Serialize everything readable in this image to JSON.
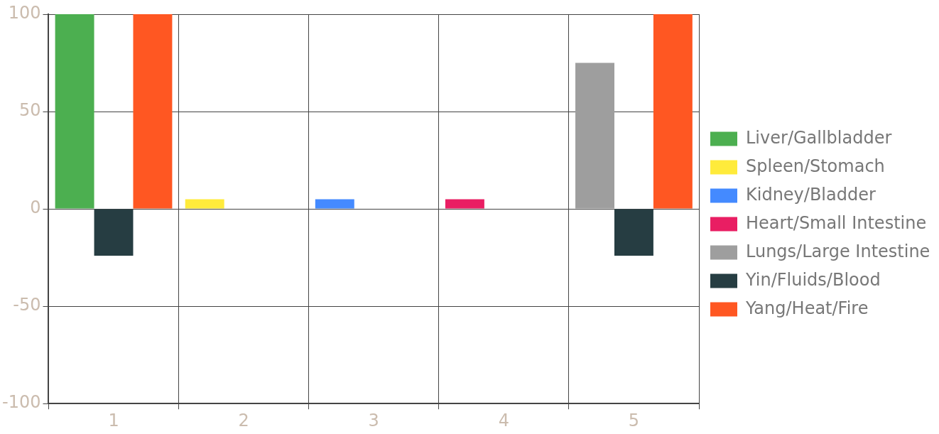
{
  "chart_data": {
    "type": "bar",
    "categories": [
      "1",
      "2",
      "3",
      "4",
      "5"
    ],
    "series": [
      {
        "name": "Liver/Gallbladder",
        "color": "#4caf50",
        "values": [
          100,
          null,
          null,
          null,
          null
        ]
      },
      {
        "name": "Spleen/Stomach",
        "color": "#ffeb3b",
        "values": [
          null,
          5,
          null,
          null,
          null
        ]
      },
      {
        "name": "Kidney/Bladder",
        "color": "#448aff",
        "values": [
          null,
          null,
          5,
          null,
          null
        ]
      },
      {
        "name": "Heart/Small Intestine",
        "color": "#e91e63",
        "values": [
          null,
          null,
          null,
          5,
          null
        ]
      },
      {
        "name": "Lungs/Large Intestine",
        "color": "#9e9e9e",
        "values": [
          null,
          null,
          null,
          null,
          75
        ]
      },
      {
        "name": "Yin/Fluids/Blood",
        "color": "#263d42",
        "values": [
          -24,
          null,
          null,
          null,
          -24
        ]
      },
      {
        "name": "Yang/Heat/Fire",
        "color": "#ff5722",
        "values": [
          100,
          null,
          null,
          null,
          100
        ]
      }
    ],
    "ylim": [
      -100,
      100
    ],
    "yticks": [
      -100,
      -50,
      0,
      50,
      100
    ],
    "grid": true,
    "legend": "right"
  }
}
